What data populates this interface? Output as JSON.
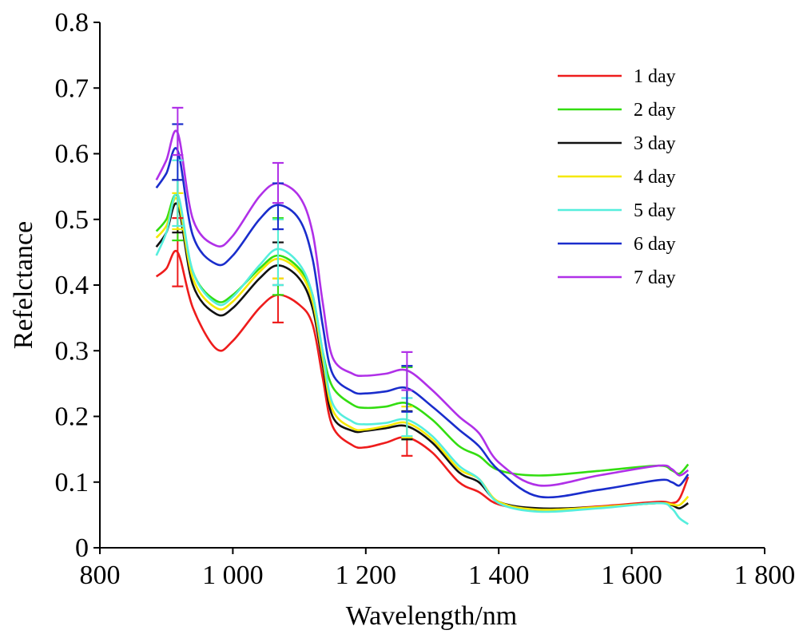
{
  "chart_data": {
    "type": "line",
    "xlabel": "Wavelength/nm",
    "ylabel": "Refelctance",
    "xlim": [
      800,
      1800
    ],
    "ylim": [
      0,
      0.8
    ],
    "x_ticks": [
      800,
      1000,
      1200,
      1400,
      1600,
      1800
    ],
    "x_tick_labels": [
      "800",
      "1 000",
      "1 200",
      "1 400",
      "1 600",
      "1 800"
    ],
    "y_ticks": [
      0,
      0.1,
      0.2,
      0.3,
      0.4,
      0.5,
      0.6,
      0.7,
      0.8
    ],
    "y_tick_labels": [
      "0",
      "0.1",
      "0.2",
      "0.3",
      "0.4",
      "0.5",
      "0.6",
      "0.7",
      "0.8"
    ],
    "grid": false,
    "legend_position": "top-right",
    "x": [
      885,
      900,
      917,
      940,
      975,
      1000,
      1040,
      1068,
      1100,
      1120,
      1135,
      1150,
      1180,
      1200,
      1230,
      1262,
      1300,
      1340,
      1370,
      1400,
      1460,
      1550,
      1640,
      1660,
      1672,
      1685
    ],
    "series": [
      {
        "name": "1 day",
        "color": "#ee1c1c",
        "values": [
          0.413,
          0.425,
          0.45,
          0.365,
          0.303,
          0.315,
          0.365,
          0.385,
          0.37,
          0.34,
          0.26,
          0.185,
          0.156,
          0.153,
          0.16,
          0.168,
          0.145,
          0.1,
          0.085,
          0.066,
          0.058,
          0.063,
          0.07,
          0.068,
          0.075,
          0.108
        ],
        "error_x": [
          917,
          1068,
          1262
        ],
        "error_lo": [
          0.398,
          0.343,
          0.14
        ],
        "error_hi": [
          0.502,
          0.41,
          0.167
        ]
      },
      {
        "name": "2 day",
        "color": "#33dd11",
        "values": [
          0.482,
          0.5,
          0.535,
          0.42,
          0.376,
          0.385,
          0.425,
          0.445,
          0.425,
          0.385,
          0.3,
          0.245,
          0.218,
          0.213,
          0.215,
          0.22,
          0.195,
          0.155,
          0.14,
          0.118,
          0.11,
          0.117,
          0.125,
          0.118,
          0.113,
          0.127
        ],
        "error_x": [
          917,
          1068,
          1262
        ],
        "error_lo": [
          0.468,
          0.385,
          0.165
        ],
        "error_hi": [
          0.56,
          0.502,
          0.275
        ]
      },
      {
        "name": "3 day",
        "color": "#111111",
        "values": [
          0.458,
          0.48,
          0.522,
          0.4,
          0.356,
          0.365,
          0.41,
          0.43,
          0.41,
          0.365,
          0.28,
          0.2,
          0.178,
          0.178,
          0.182,
          0.185,
          0.16,
          0.115,
          0.1,
          0.07,
          0.06,
          0.062,
          0.068,
          0.065,
          0.06,
          0.068
        ],
        "error_x": [
          917,
          1068,
          1262
        ],
        "error_lo": [
          0.48,
          0.4,
          0.165
        ],
        "error_hi": [
          0.56,
          0.465,
          0.208
        ]
      },
      {
        "name": "4 day",
        "color": "#f5e800",
        "values": [
          0.472,
          0.49,
          0.53,
          0.41,
          0.365,
          0.375,
          0.42,
          0.44,
          0.42,
          0.375,
          0.29,
          0.21,
          0.182,
          0.18,
          0.185,
          0.19,
          0.165,
          0.12,
          0.105,
          0.07,
          0.058,
          0.062,
          0.068,
          0.066,
          0.065,
          0.078
        ],
        "error_x": [
          917,
          1068,
          1262
        ],
        "error_lo": [
          0.485,
          0.41,
          0.168
        ],
        "error_hi": [
          0.54,
          0.5,
          0.215
        ]
      },
      {
        "name": "5 day",
        "color": "#55eedd",
        "values": [
          0.445,
          0.48,
          0.538,
          0.42,
          0.372,
          0.382,
          0.43,
          0.455,
          0.432,
          0.385,
          0.3,
          0.22,
          0.192,
          0.188,
          0.19,
          0.195,
          0.17,
          0.125,
          0.105,
          0.068,
          0.055,
          0.06,
          0.068,
          0.06,
          0.045,
          0.036
        ],
        "error_x": [
          917,
          1068,
          1262
        ],
        "error_lo": [
          0.49,
          0.4,
          0.17
        ],
        "error_hi": [
          0.59,
          0.5,
          0.228
        ]
      },
      {
        "name": "6 day",
        "color": "#1a2dcc",
        "values": [
          0.548,
          0.57,
          0.605,
          0.475,
          0.432,
          0.445,
          0.5,
          0.522,
          0.5,
          0.44,
          0.34,
          0.265,
          0.238,
          0.235,
          0.238,
          0.243,
          0.215,
          0.18,
          0.155,
          0.118,
          0.078,
          0.088,
          0.103,
          0.1,
          0.095,
          0.112
        ],
        "error_x": [
          917,
          1068,
          1262
        ],
        "error_lo": [
          0.56,
          0.485,
          0.207
        ],
        "error_hi": [
          0.645,
          0.555,
          0.277
        ]
      },
      {
        "name": "7 day",
        "color": "#b030e8",
        "values": [
          0.56,
          0.59,
          0.632,
          0.5,
          0.46,
          0.475,
          0.535,
          0.555,
          0.535,
          0.48,
          0.375,
          0.29,
          0.265,
          0.262,
          0.265,
          0.27,
          0.24,
          0.2,
          0.175,
          0.13,
          0.095,
          0.11,
          0.125,
          0.12,
          0.11,
          0.118
        ],
        "error_x": [
          917,
          1068,
          1262
        ],
        "error_lo": [
          0.598,
          0.525,
          0.24
        ],
        "error_hi": [
          0.67,
          0.586,
          0.298
        ]
      }
    ]
  }
}
